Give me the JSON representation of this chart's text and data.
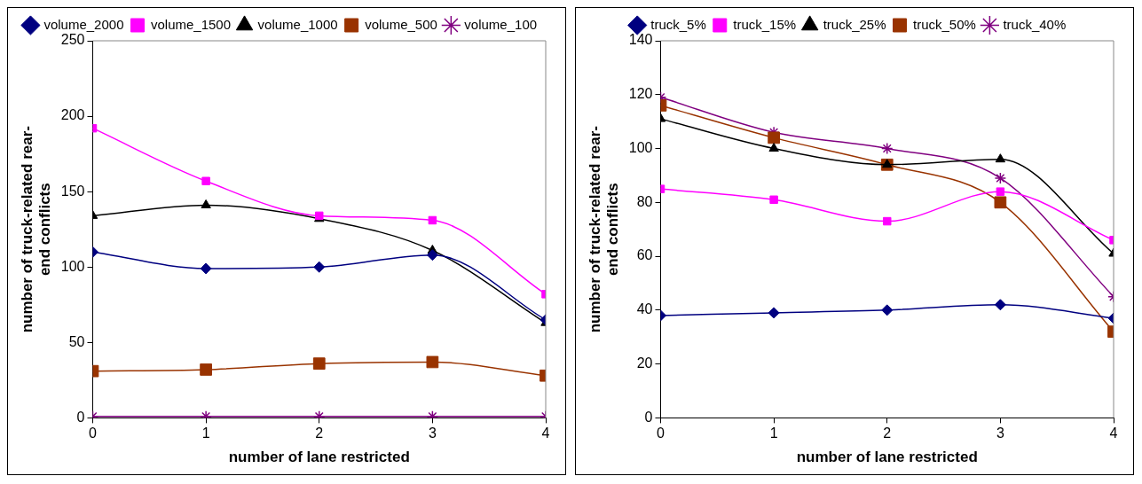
{
  "chart_data": [
    {
      "type": "line",
      "xlabel": "number of lane restricted",
      "ylabel": "number of truck-related rear-end conflicts",
      "x": [
        0,
        1,
        2,
        3,
        4
      ],
      "xlim": [
        0,
        4
      ],
      "xticks": [
        0,
        1,
        2,
        3,
        4
      ],
      "ylim": [
        0,
        250
      ],
      "yticks": [
        0,
        50,
        100,
        150,
        200,
        250
      ],
      "grid": false,
      "legend": "top",
      "series": [
        {
          "name": "volume_2000",
          "color": "#000080",
          "marker": "diamond",
          "values": [
            110,
            99,
            100,
            108,
            65
          ]
        },
        {
          "name": "volume_1500",
          "color": "#ff00ff",
          "marker": "square",
          "values": [
            192,
            157,
            134,
            131,
            82
          ]
        },
        {
          "name": "volume_1000",
          "color": "#000000",
          "marker": "triangle",
          "values": [
            134,
            141,
            132,
            111,
            63
          ]
        },
        {
          "name": "volume_500",
          "color": "#993300",
          "marker": "square",
          "values": [
            31,
            32,
            36,
            37,
            28
          ]
        },
        {
          "name": "volume_100",
          "color": "#800080",
          "marker": "cross",
          "values": [
            1,
            1,
            1,
            1,
            1
          ]
        }
      ]
    },
    {
      "type": "line",
      "xlabel": "number of lane restricted",
      "ylabel": "number of truck-related rear-end conflicts",
      "x": [
        0,
        1,
        2,
        3,
        4
      ],
      "xlim": [
        0,
        4
      ],
      "xticks": [
        0,
        1,
        2,
        3,
        4
      ],
      "ylim": [
        0,
        140
      ],
      "yticks": [
        0,
        20,
        40,
        60,
        80,
        100,
        120,
        140
      ],
      "grid": false,
      "legend": "top",
      "series": [
        {
          "name": "truck_5%",
          "color": "#000080",
          "marker": "diamond",
          "values": [
            38,
            39,
            40,
            42,
            37
          ]
        },
        {
          "name": "truck_15%",
          "color": "#ff00ff",
          "marker": "square",
          "values": [
            85,
            81,
            73,
            84,
            66
          ]
        },
        {
          "name": "truck_25%",
          "color": "#000000",
          "marker": "triangle",
          "values": [
            111,
            100,
            94,
            96,
            61
          ]
        },
        {
          "name": "truck_50%",
          "color": "#993300",
          "marker": "square",
          "values": [
            116,
            104,
            94,
            80,
            32
          ]
        },
        {
          "name": "truck_40%",
          "color": "#800080",
          "marker": "cross",
          "values": [
            119,
            106,
            100,
            89,
            45
          ]
        }
      ]
    }
  ]
}
